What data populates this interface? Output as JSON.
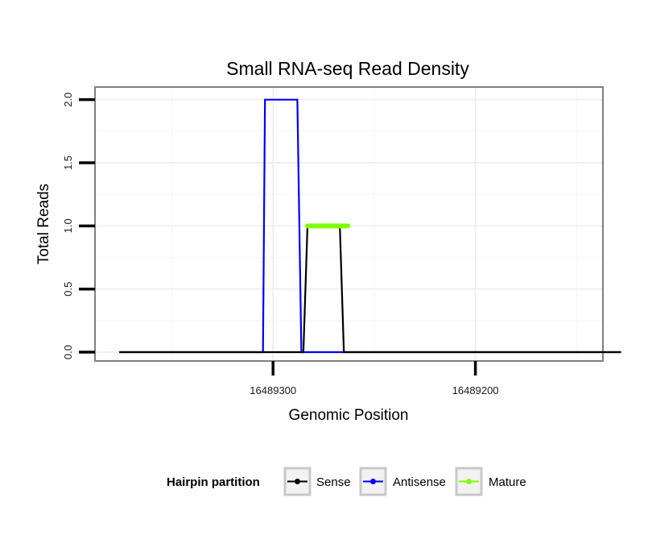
{
  "chart_data": {
    "type": "line",
    "title": "Small RNA-seq Read Density",
    "xlabel": "Genomic Position",
    "ylabel": "Total Reads",
    "x_reversed": true,
    "xlim": [
      16489388,
      16489137
    ],
    "ylim": [
      -0.07,
      2.1
    ],
    "x_ticks": [
      16489300,
      16489200
    ],
    "x_tick_labels": [
      "16489300",
      "16489200"
    ],
    "y_ticks": [
      0,
      0.5,
      1,
      1.5,
      2
    ],
    "y_tick_labels": [
      "0.0",
      "0.5",
      "1.0",
      "1.5",
      "2.0"
    ],
    "grid": true,
    "legend": {
      "title": "Hairpin partition",
      "position": "bottom"
    },
    "series": [
      {
        "name": "Sense",
        "color": "#000000",
        "x": [
          16489376,
          16489285,
          16489283,
          16489267,
          16489265,
          16489128
        ],
        "y": [
          0,
          0,
          1,
          1,
          0,
          0
        ]
      },
      {
        "name": "Antisense",
        "color": "#0000ff",
        "x": [
          16489376,
          16489305,
          16489304,
          16489288,
          16489286,
          16489128
        ],
        "y": [
          0,
          0,
          2,
          2,
          0,
          0
        ]
      },
      {
        "name": "Mature",
        "color": "#7fff00",
        "x": [
          16489283,
          16489263
        ],
        "y": [
          1,
          1
        ]
      }
    ]
  }
}
